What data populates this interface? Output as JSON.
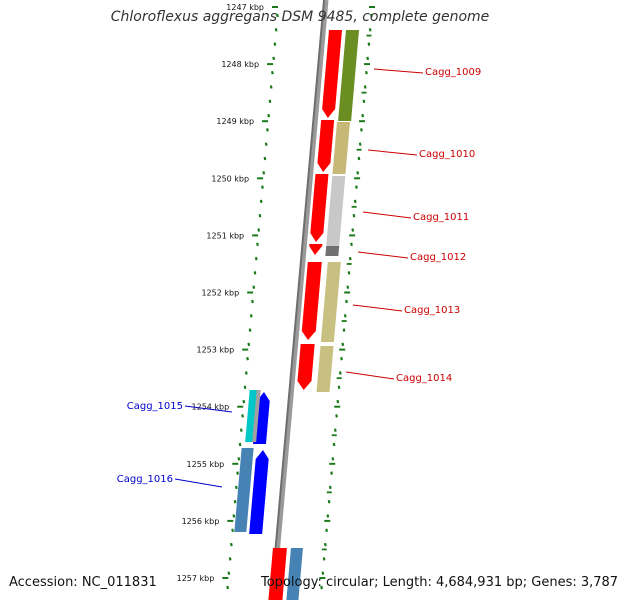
{
  "title": "Chloroflexus aggregans DSM 9485, complete genome",
  "footer": {
    "accession": "Accession: NC_011831",
    "summary": "Topology: circular; Length: 4,684,931 bp; Genes: 3,787"
  },
  "colors": {
    "backbone": "#808080",
    "tick": "#1a7a1a",
    "forward_label": "#cc0000",
    "reverse_label": "#0000cc",
    "gene_forward": "#ff0000",
    "gene_reverse": "#0000ff"
  },
  "scale_labels": [
    {
      "kbp": 1247,
      "label": "1247 kbp"
    },
    {
      "kbp": 1248,
      "label": "1248 kbp"
    },
    {
      "kbp": 1249,
      "label": "1249 kbp"
    },
    {
      "kbp": 1250,
      "label": "1250 kbp"
    },
    {
      "kbp": 1251,
      "label": "1251 kbp"
    },
    {
      "kbp": 1252,
      "label": "1252 kbp"
    },
    {
      "kbp": 1253,
      "label": "1253 kbp"
    },
    {
      "kbp": 1254,
      "label": "1254 kbp"
    },
    {
      "kbp": 1255,
      "label": "1255 kbp"
    },
    {
      "kbp": 1256,
      "label": "1256 kbp"
    },
    {
      "kbp": 1257,
      "label": "1257 kbp"
    }
  ],
  "genes": [
    {
      "name": "Cagg_1009",
      "strand": "forward",
      "label_color": "#cc0000"
    },
    {
      "name": "Cagg_1010",
      "strand": "forward",
      "label_color": "#cc0000"
    },
    {
      "name": "Cagg_1011",
      "strand": "forward",
      "label_color": "#cc0000"
    },
    {
      "name": "Cagg_1012",
      "strand": "forward",
      "label_color": "#cc0000"
    },
    {
      "name": "Cagg_1013",
      "strand": "forward",
      "label_color": "#cc0000"
    },
    {
      "name": "Cagg_1014",
      "strand": "forward",
      "label_color": "#cc0000"
    },
    {
      "name": "Cagg_1015",
      "strand": "reverse",
      "label_color": "#0000cc"
    },
    {
      "name": "Cagg_1016",
      "strand": "reverse",
      "label_color": "#0000cc"
    }
  ]
}
